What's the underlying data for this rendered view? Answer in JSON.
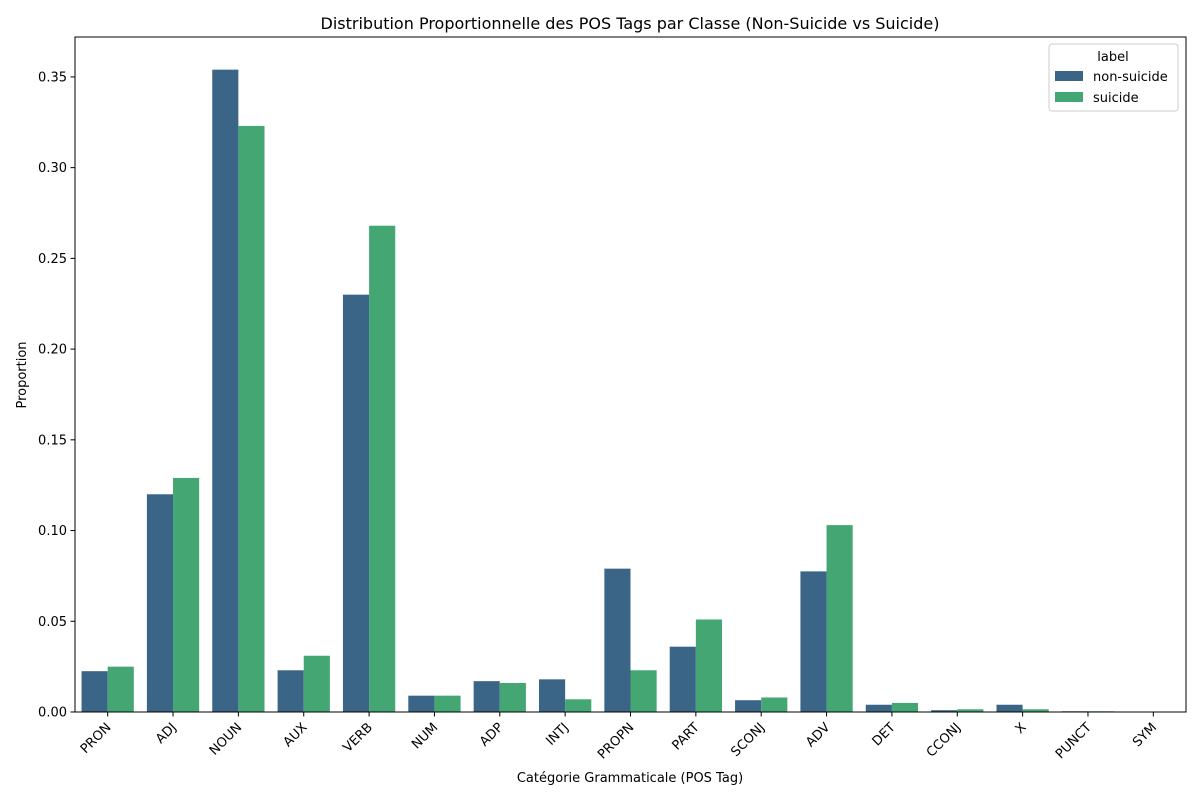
{
  "chart_data": {
    "type": "bar",
    "title": "Distribution Proportionnelle des POS Tags par Classe (Non-Suicide vs Suicide)",
    "xlabel": "Catégorie Grammaticale (POS Tag)",
    "ylabel": "Proportion",
    "ylim": [
      0,
      0.372
    ],
    "yticks": [
      "0.00",
      "0.05",
      "0.10",
      "0.15",
      "0.20",
      "0.25",
      "0.30",
      "0.35"
    ],
    "grid": false,
    "legend": {
      "title": "label",
      "placement": "top-right"
    },
    "categories": [
      "PRON",
      "ADJ",
      "NOUN",
      "AUX",
      "VERB",
      "NUM",
      "ADP",
      "INTJ",
      "PROPN",
      "PART",
      "SCONJ",
      "ADV",
      "DET",
      "CCONJ",
      "X",
      "PUNCT",
      "SYM"
    ],
    "series": [
      {
        "name": "non-suicide",
        "color": "#3b6587",
        "values": [
          0.0225,
          0.12,
          0.354,
          0.023,
          0.23,
          0.009,
          0.017,
          0.018,
          0.079,
          0.036,
          0.0065,
          0.0775,
          0.004,
          0.001,
          0.004,
          0.0004,
          0.0
        ]
      },
      {
        "name": "suicide",
        "color": "#44a773",
        "values": [
          0.025,
          0.129,
          0.323,
          0.031,
          0.268,
          0.009,
          0.016,
          0.007,
          0.023,
          0.051,
          0.008,
          0.103,
          0.005,
          0.0015,
          0.0015,
          0.0004,
          0.0
        ]
      }
    ]
  }
}
